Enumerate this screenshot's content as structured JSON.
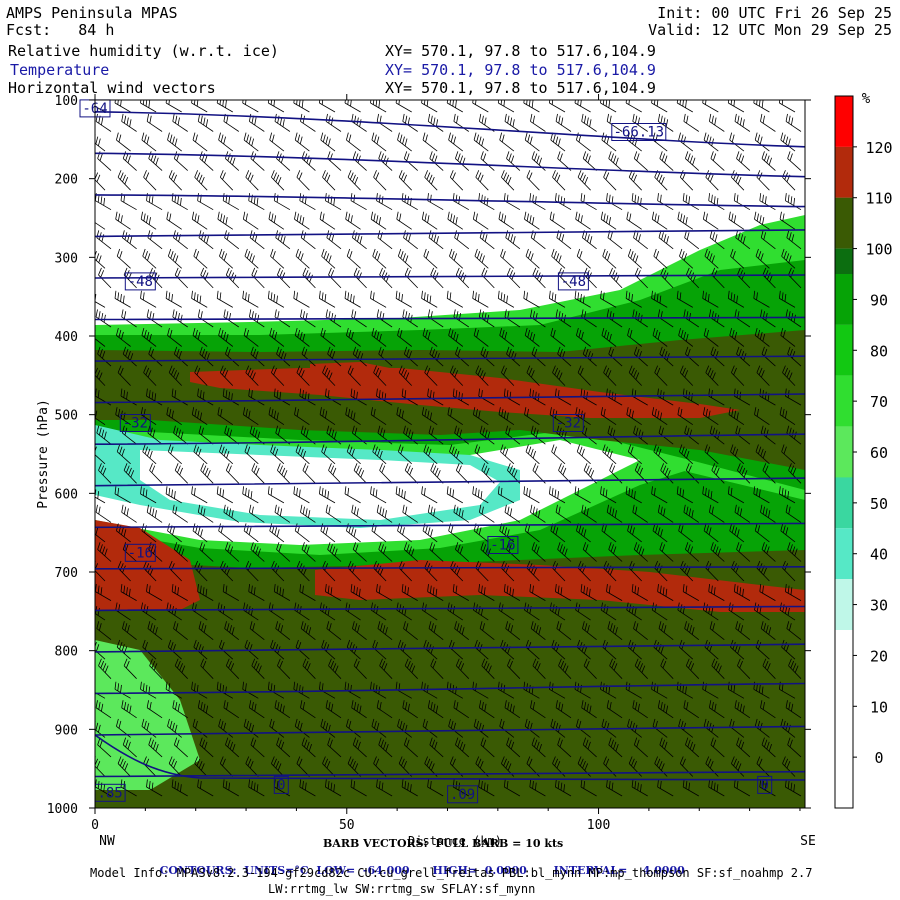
{
  "header": {
    "left": [
      "AMPS Peninsula MPAS",
      "Fcst:   84 h"
    ],
    "right": [
      "Init: 00 UTC Fri 26 Sep 25",
      "Valid: 12 UTC Mon 29 Sep 25"
    ],
    "fields": [
      {
        "name": "Relative humidity (w.r.t. ice)",
        "xy": "XY= 570.1, 97.8 to 517.6,104.9",
        "color": "#000000"
      },
      {
        "name": "Temperature",
        "xy": "XY= 570.1, 97.8 to 517.6,104.9",
        "color": "#1a1aa6"
      },
      {
        "name": "Horizontal wind vectors",
        "xy": "XY= 570.1, 97.8 to 517.6,104.9",
        "color": "#000000"
      }
    ]
  },
  "chart_data": {
    "type": "cross-section",
    "title": "Relative humidity (w.r.t. ice), Temperature, Horizontal wind vectors",
    "xlabel": "Distance (km)",
    "ylabel": "Pressure (hPa)",
    "xlim": [
      0,
      141
    ],
    "ylim": [
      1000,
      100
    ],
    "x_ticks": [
      "0",
      "50",
      "100"
    ],
    "x_tick_values": [
      0,
      50,
      100
    ],
    "y_ticks": [
      "100",
      "200",
      "300",
      "400",
      "500",
      "600",
      "700",
      "800",
      "900",
      "1000"
    ],
    "y_tick_values": [
      100,
      200,
      300,
      400,
      500,
      600,
      700,
      800,
      900,
      1000
    ],
    "endpoints": {
      "left": "NW",
      "right": "SE"
    },
    "colorbar": {
      "unit": "%",
      "labels": [
        "120",
        "110",
        "100",
        "90",
        "80",
        "70",
        "60",
        "50",
        "40",
        "30",
        "20",
        "10",
        "0"
      ],
      "label_values": [
        120,
        110,
        100,
        90,
        80,
        70,
        60,
        50,
        40,
        30,
        20,
        10,
        0
      ],
      "bands": [
        {
          "from": 120,
          "to": 130,
          "color": "#ff0000"
        },
        {
          "from": 110,
          "to": 120,
          "color": "#b22a0c"
        },
        {
          "from": 100,
          "to": 110,
          "color": "#3a5a04"
        },
        {
          "from": 95,
          "to": 100,
          "color": "#0c6e10"
        },
        {
          "from": 85,
          "to": 95,
          "color": "#06a306"
        },
        {
          "from": 75,
          "to": 85,
          "color": "#12c812"
        },
        {
          "from": 65,
          "to": 75,
          "color": "#30de30"
        },
        {
          "from": 55,
          "to": 65,
          "color": "#5ce85c"
        },
        {
          "from": 45,
          "to": 55,
          "color": "#3ad7a0"
        },
        {
          "from": 35,
          "to": 45,
          "color": "#56e8c6"
        },
        {
          "from": 25,
          "to": 35,
          "color": "#bff7e8"
        },
        {
          "from": -10,
          "to": 25,
          "color": "#ffffff"
        }
      ]
    },
    "rh_layers": [
      {
        "name": "moist-layer-upper",
        "top_hpa": 420,
        "bottom_hpa": 530,
        "rh": 100
      },
      {
        "name": "saturated-core-upper",
        "top_hpa": 455,
        "bottom_hpa": 500,
        "rh": 112
      },
      {
        "name": "moist-layer-lower",
        "top_hpa": 650,
        "bottom_hpa": 1000,
        "rh": 102
      },
      {
        "name": "saturated-core-lower",
        "top_hpa": 690,
        "bottom_hpa": 740,
        "rh": 112
      },
      {
        "name": "dry-pocket",
        "top_hpa": 555,
        "bottom_hpa": 640,
        "rh": 15
      }
    ],
    "temperature_contours": {
      "units": "°C",
      "low": -64.0,
      "high": 0.0,
      "interval": 4.0,
      "labels": [
        {
          "text": "-64",
          "x_km": 0,
          "p_hpa": 110
        },
        {
          "text": "-66.13",
          "x_km": 108,
          "p_hpa": 140
        },
        {
          "text": "-48",
          "x_km": 9,
          "p_hpa": 330
        },
        {
          "text": "-48",
          "x_km": 95,
          "p_hpa": 330
        },
        {
          "text": "-32",
          "x_km": 8,
          "p_hpa": 510
        },
        {
          "text": "-32",
          "x_km": 94,
          "p_hpa": 510
        },
        {
          "text": "-16",
          "x_km": 9,
          "p_hpa": 675
        },
        {
          "text": "-16",
          "x_km": 81,
          "p_hpa": 665
        },
        {
          "text": "0",
          "x_km": 37,
          "p_hpa": 970
        },
        {
          "text": ".85",
          "x_km": 3,
          "p_hpa": 980
        },
        {
          "text": ".09",
          "x_km": 73,
          "p_hpa": 982
        },
        {
          "text": "0",
          "x_km": 133,
          "p_hpa": 970
        }
      ]
    },
    "barb_legend": "BARB VECTORS:  FULL BARB = 10 kts",
    "contour_info": {
      "label": "CONTOURS:",
      "units": "UNITS=°C",
      "low": "LOW=  -64.000",
      "high": "HIGH=  0.0000",
      "interval": "INTERVAL=    4.0000"
    }
  },
  "footer": {
    "model_info_1": "Model Info: MPASv8.2.3-194-gf29cd82c CU:cu_grell_freitas PBL:bl_mynn MP:mp_thompson SF:sf_noahmp 2.7",
    "model_info_2": "LW:rrtmg_lw SW:rrtmg_sw SFLAY:sf_mynn"
  },
  "colors": {
    "isotherm": "#121283",
    "barb": "#000000",
    "text_blue": "#1a1aa6"
  }
}
